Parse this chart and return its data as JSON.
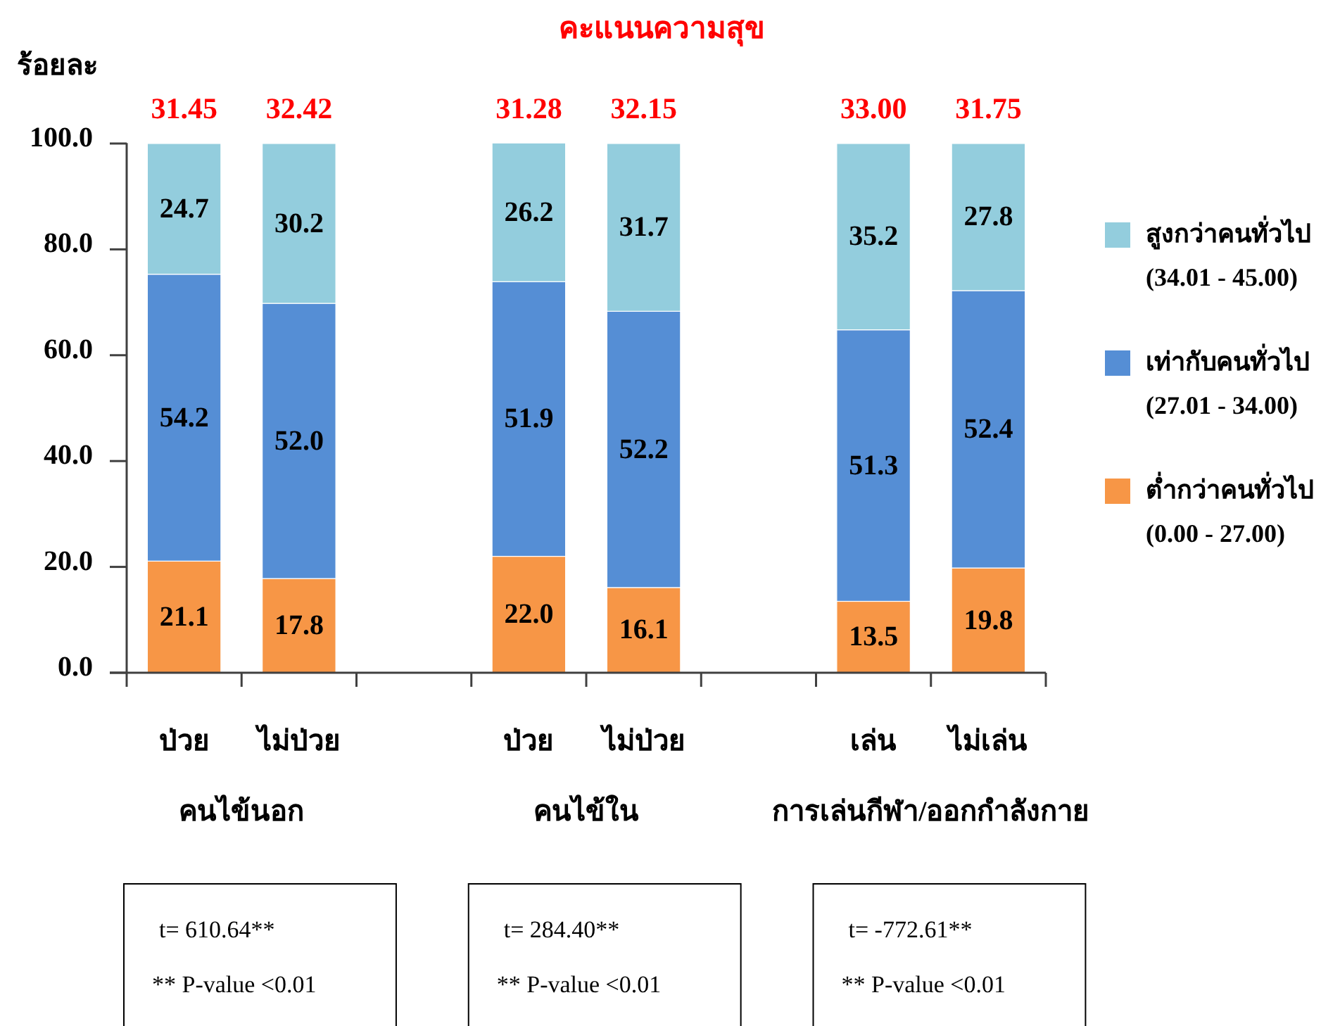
{
  "chart_data": {
    "type": "bar",
    "stacked": true,
    "title": "คะแนนความสุข",
    "ylabel": "ร้อยละ",
    "categories": [
      "ป่วย",
      "ไม่ป่วย",
      null,
      "ป่วย",
      "ไม่ป่วย",
      null,
      "เล่น",
      "ไม่เล่น"
    ],
    "series": [
      {
        "name": "ต่ำกว่าคนทั่วไป (0.00 - 27.00)",
        "color": "#f79646",
        "values": [
          21.1,
          17.8,
          null,
          22.0,
          16.1,
          null,
          13.5,
          19.8
        ],
        "value_labels": [
          "21.1",
          "17.8",
          null,
          "22.0",
          "16.1",
          null,
          "13.5",
          "19.8"
        ]
      },
      {
        "name": "เท่ากับคนทั่วไป (27.01 - 34.00)",
        "color": "#558ed5",
        "values": [
          54.2,
          52.0,
          null,
          51.9,
          52.2,
          null,
          51.3,
          52.4
        ],
        "value_labels": [
          "54.2",
          "52.0",
          null,
          "51.9",
          "52.2",
          null,
          "51.3",
          "52.4"
        ]
      },
      {
        "name": "สูงกว่าคนทั่วไป (34.01 - 45.00)",
        "color": "#93cddd",
        "values": [
          24.7,
          30.2,
          null,
          26.2,
          31.7,
          null,
          35.2,
          27.8
        ],
        "value_labels": [
          "24.7",
          "30.2",
          null,
          "26.2",
          "31.7",
          null,
          "35.2",
          "27.8"
        ]
      }
    ],
    "ylim": [
      0,
      100.1
    ],
    "yticks": [
      {
        "value": 0,
        "label": "0.0"
      },
      {
        "value": 20,
        "label": "20.0"
      },
      {
        "value": 40,
        "label": "40.0"
      },
      {
        "value": 60,
        "label": "60.0"
      },
      {
        "value": 80,
        "label": "80.0"
      },
      {
        "value": 100,
        "label": "100.0"
      }
    ],
    "legend": "right",
    "annotations": [
      "31.45",
      "32.42",
      "31.28",
      "32.15",
      "33.00",
      "31.75",
      "คนไข้นอก",
      "คนไข้ใน",
      "การเล่นกีฬา/ออกกำลังกาย",
      "t= 610.64**",
      "** P-value <0.01",
      "t= 284.40**",
      "** P-value <0.01",
      "t= -772.61**",
      "** P-value <0.01"
    ]
  }
}
